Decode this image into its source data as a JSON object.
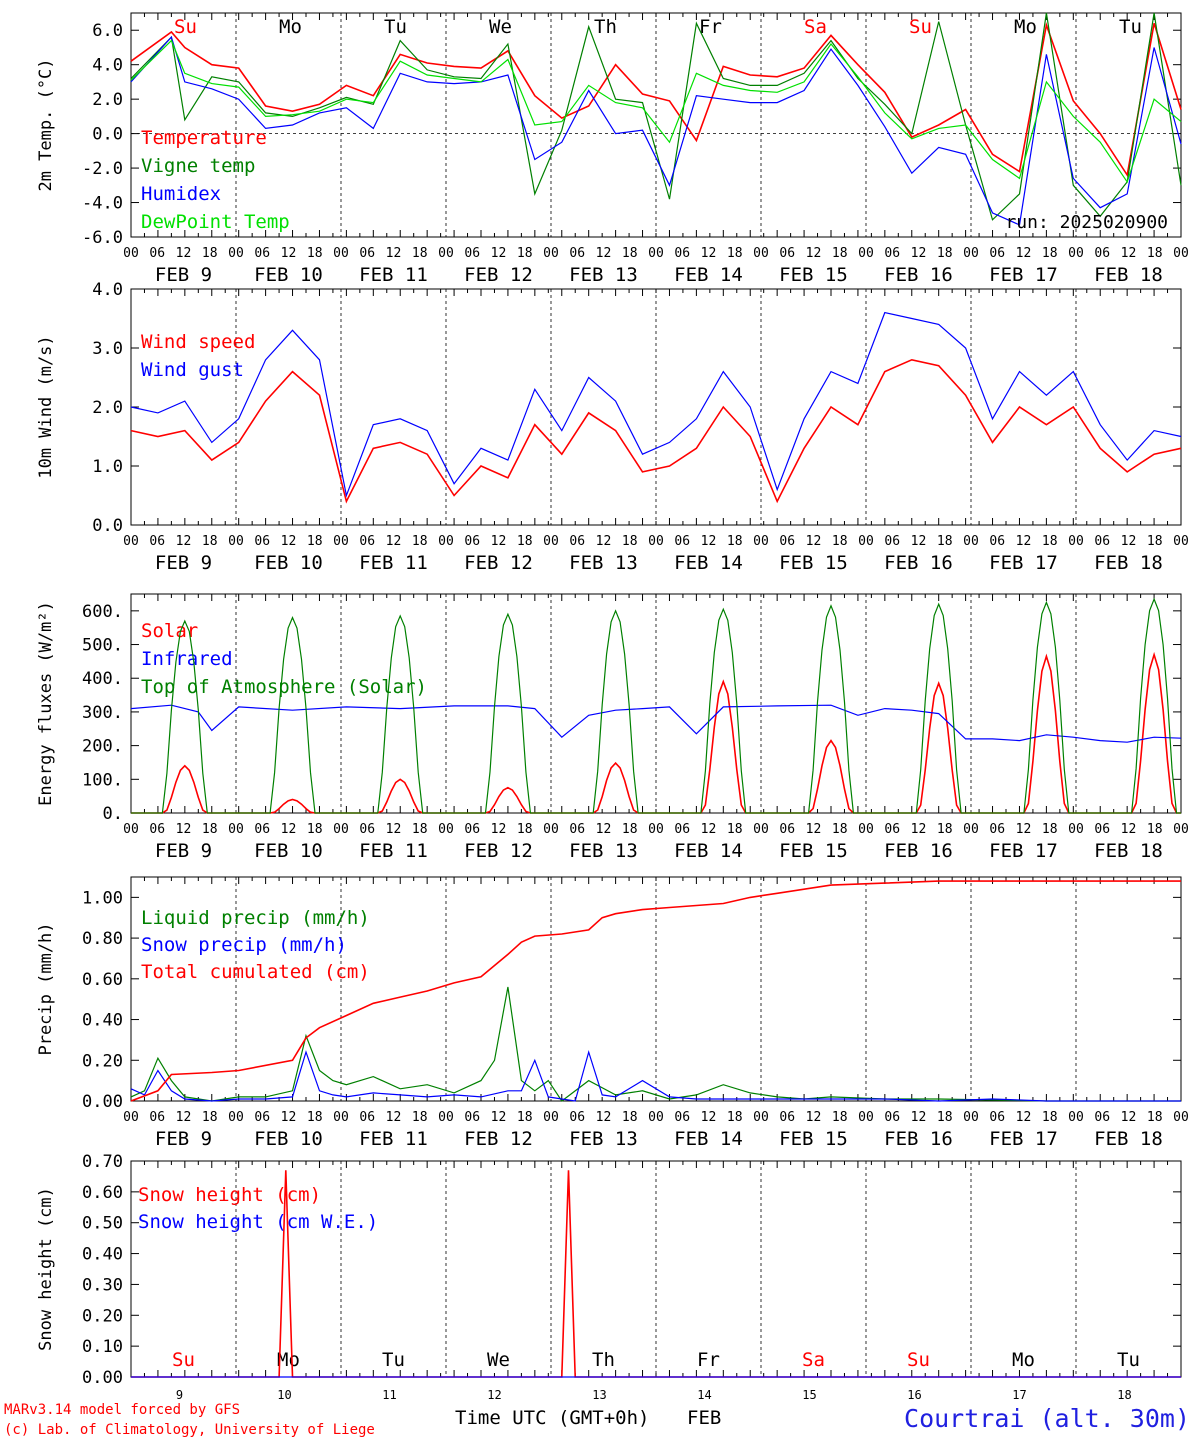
{
  "days": [
    {
      "abbr": "Su",
      "num": "9",
      "label": "FEB  9",
      "weekend": true
    },
    {
      "abbr": "Mo",
      "num": "10",
      "label": "FEB 10",
      "weekend": false
    },
    {
      "abbr": "Tu",
      "num": "11",
      "label": "FEB 11",
      "weekend": false
    },
    {
      "abbr": "We",
      "num": "12",
      "label": "FEB 12",
      "weekend": false
    },
    {
      "abbr": "Th",
      "num": "13",
      "label": "FEB 13",
      "weekend": false
    },
    {
      "abbr": "Fr",
      "num": "14",
      "label": "FEB 14",
      "weekend": false
    },
    {
      "abbr": "Sa",
      "num": "15",
      "label": "FEB 15",
      "weekend": true
    },
    {
      "abbr": "Su",
      "num": "16",
      "label": "FEB 16",
      "weekend": true
    },
    {
      "abbr": "Mo",
      "num": "17",
      "label": "FEB 17",
      "weekend": false
    },
    {
      "abbr": "Tu",
      "num": "18",
      "label": "FEB 18",
      "weekend": false
    }
  ],
  "hour_ticks": [
    "00",
    "06",
    "12",
    "18"
  ],
  "footer": {
    "model": "MARv3.14 model forced by GFS",
    "copyright": "(c) Lab. of Climatology, University of Liege",
    "xlabel": "Time UTC (GMT+0h)",
    "month": "FEB",
    "location": "Courtrai (alt. 30m)"
  },
  "colors": {
    "red": "#ff0000",
    "darkgreen": "#008000",
    "blue": "#0000ff",
    "lightgreen": "#00e000",
    "axis": "#000000",
    "weekend": "#ff0000"
  },
  "chart_data": [
    {
      "type": "line",
      "ylabel": "2m Temp. (°C)",
      "ylim": [
        -6,
        7
      ],
      "yticks": [
        "6.0",
        "4.0",
        "2.0",
        "0.0",
        "-2.0",
        "-4.0",
        "-6.0"
      ],
      "annotation": "run: 2025020900",
      "zero_line": true,
      "x_hours": [
        0,
        9,
        12,
        18,
        24,
        30,
        36,
        42,
        48,
        54,
        60,
        66,
        72,
        78,
        84,
        90,
        96,
        102,
        108,
        114,
        120,
        126,
        132,
        138,
        144,
        150,
        156,
        162,
        168,
        174,
        180,
        186,
        192,
        198,
        204,
        210,
        216,
        222,
        228,
        234
      ],
      "series": [
        {
          "name": "Temperature",
          "color": "red",
          "values": [
            4.2,
            5.9,
            5.0,
            4.0,
            3.8,
            1.6,
            1.3,
            1.7,
            2.8,
            2.2,
            4.6,
            4.1,
            3.9,
            3.8,
            4.8,
            2.2,
            0.9,
            1.6,
            4.0,
            2.3,
            1.9,
            -0.4,
            3.9,
            3.4,
            3.3,
            3.8,
            5.7,
            4.0,
            2.4,
            -0.2,
            0.5,
            1.4,
            -1.2,
            -2.2,
            6.3,
            1.9,
            0.0,
            -2.4,
            6.4,
            1.4
          ]
        },
        {
          "name": "Vigne temp",
          "color": "darkgreen",
          "values": [
            3.2,
            5.6,
            0.8,
            3.3,
            3.0,
            1.2,
            1.0,
            1.5,
            2.1,
            1.7,
            5.4,
            3.7,
            3.3,
            3.2,
            5.2,
            -3.5,
            0.2,
            6.2,
            2.0,
            1.8,
            -3.8,
            6.4,
            3.2,
            2.8,
            2.8,
            3.5,
            5.4,
            3.2,
            1.7,
            0.0,
            6.5,
            0.5,
            -5.0,
            -3.5,
            7.0,
            -3.0,
            -4.8,
            -2.8,
            7.0,
            -3.0
          ]
        },
        {
          "name": "Humidex",
          "color": "blue",
          "values": [
            3.0,
            5.6,
            3.0,
            2.6,
            2.0,
            0.3,
            0.5,
            1.2,
            1.5,
            0.3,
            3.5,
            3.0,
            2.9,
            3.0,
            3.4,
            -1.5,
            -0.5,
            2.5,
            0.0,
            0.2,
            -3.0,
            2.2,
            2.0,
            1.8,
            1.8,
            2.5,
            4.9,
            2.8,
            0.4,
            -2.3,
            -0.8,
            -1.2,
            -4.6,
            -5.3,
            4.6,
            -2.6,
            -4.3,
            -3.5,
            5.0,
            -0.6
          ]
        },
        {
          "name": "DewPoint Temp",
          "color": "lightgreen",
          "values": [
            3.1,
            5.4,
            3.5,
            2.9,
            2.7,
            1.0,
            1.1,
            1.3,
            2.0,
            1.8,
            4.2,
            3.4,
            3.2,
            3.0,
            4.3,
            0.5,
            0.7,
            2.8,
            1.8,
            1.5,
            -0.5,
            3.5,
            2.8,
            2.5,
            2.4,
            3.0,
            5.2,
            3.3,
            1.2,
            -0.3,
            0.3,
            0.5,
            -1.5,
            -2.6,
            3.0,
            1.0,
            -0.5,
            -2.8,
            2.0,
            0.7
          ]
        }
      ]
    },
    {
      "type": "line",
      "ylabel": "10m Wind (m/s)",
      "ylim": [
        0,
        4
      ],
      "yticks": [
        "4.0",
        "3.0",
        "2.0",
        "1.0",
        "0.0"
      ],
      "x_hours": [
        0,
        6,
        12,
        18,
        24,
        30,
        36,
        42,
        48,
        54,
        60,
        66,
        72,
        78,
        84,
        90,
        96,
        102,
        108,
        114,
        120,
        126,
        132,
        138,
        144,
        150,
        156,
        162,
        168,
        174,
        180,
        186,
        192,
        198,
        204,
        210,
        216,
        222,
        228,
        234
      ],
      "series": [
        {
          "name": "Wind speed",
          "color": "red",
          "values": [
            1.6,
            1.5,
            1.6,
            1.1,
            1.4,
            2.1,
            2.6,
            2.2,
            0.4,
            1.3,
            1.4,
            1.2,
            0.5,
            1.0,
            0.8,
            1.7,
            1.2,
            1.9,
            1.6,
            0.9,
            1.0,
            1.3,
            2.0,
            1.5,
            0.4,
            1.3,
            2.0,
            1.7,
            2.6,
            2.8,
            2.7,
            2.2,
            1.4,
            2.0,
            1.7,
            2.0,
            1.3,
            0.9,
            1.2,
            1.3
          ]
        },
        {
          "name": "Wind gust",
          "color": "blue",
          "values": [
            2.0,
            1.9,
            2.1,
            1.4,
            1.8,
            2.8,
            3.3,
            2.8,
            0.5,
            1.7,
            1.8,
            1.6,
            0.7,
            1.3,
            1.1,
            2.3,
            1.6,
            2.5,
            2.1,
            1.2,
            1.4,
            1.8,
            2.6,
            2.0,
            0.6,
            1.8,
            2.6,
            2.4,
            3.6,
            3.5,
            3.4,
            3.0,
            1.8,
            2.6,
            2.2,
            2.6,
            1.7,
            1.1,
            1.6,
            1.5
          ]
        }
      ]
    },
    {
      "type": "line",
      "ylabel": "Energy fluxes (W/m²)",
      "ylim": [
        0,
        650
      ],
      "yticks": [
        "600.",
        "500.",
        "400.",
        "300.",
        "200.",
        "100.",
        "0."
      ],
      "series": [
        {
          "name": "Solar",
          "color": "red",
          "peaks": [
            140,
            40,
            100,
            75,
            148,
            390,
            215,
            385,
            465,
            470
          ]
        },
        {
          "name": "Infrared",
          "color": "blue",
          "x_hours": [
            0,
            9,
            15,
            18,
            24,
            36,
            48,
            60,
            72,
            84,
            90,
            96,
            102,
            108,
            114,
            120,
            126,
            132,
            144,
            156,
            162,
            168,
            174,
            180,
            186,
            192,
            198,
            204,
            210,
            216,
            222,
            228,
            234
          ],
          "values": [
            310,
            320,
            300,
            245,
            315,
            305,
            315,
            310,
            318,
            318,
            310,
            225,
            290,
            305,
            310,
            315,
            235,
            315,
            318,
            320,
            290,
            310,
            305,
            295,
            220,
            220,
            215,
            232,
            225,
            215,
            210,
            225,
            222
          ]
        },
        {
          "name": "Top of Atmosphere (Solar)",
          "color": "darkgreen",
          "peaks": [
            570,
            580,
            585,
            590,
            600,
            605,
            615,
            620,
            625,
            635
          ]
        }
      ]
    },
    {
      "type": "line",
      "ylabel": "Precip (mm/h)",
      "ylim": [
        0,
        1.1
      ],
      "yticks": [
        "1.00",
        "0.80",
        "0.60",
        "0.40",
        "0.20",
        "0.00"
      ],
      "series": [
        {
          "name": "Liquid precip (mm/h)",
          "color": "darkgreen",
          "x_hours": [
            0,
            3,
            6,
            9,
            12,
            18,
            24,
            30,
            36,
            39,
            42,
            45,
            48,
            54,
            60,
            66,
            72,
            78,
            81,
            84,
            87,
            90,
            93,
            96,
            102,
            108,
            114,
            120,
            126,
            132,
            138,
            144,
            150,
            156,
            168,
            180,
            192,
            204,
            216,
            234
          ],
          "values": [
            0.02,
            0.05,
            0.21,
            0.1,
            0.02,
            0.0,
            0.02,
            0.02,
            0.05,
            0.32,
            0.15,
            0.1,
            0.08,
            0.12,
            0.06,
            0.08,
            0.04,
            0.1,
            0.2,
            0.56,
            0.1,
            0.05,
            0.1,
            0.0,
            0.1,
            0.03,
            0.05,
            0.01,
            0.03,
            0.08,
            0.04,
            0.02,
            0.01,
            0.02,
            0.01,
            0.01,
            0.005,
            0.0,
            0.0,
            0.0
          ]
        },
        {
          "name": "Snow precip (mm/h)",
          "color": "blue",
          "x_hours": [
            0,
            3,
            6,
            9,
            12,
            18,
            24,
            30,
            36,
            39,
            42,
            45,
            48,
            54,
            60,
            66,
            72,
            78,
            84,
            87,
            90,
            93,
            96,
            99,
            102,
            105,
            108,
            114,
            120,
            126,
            132,
            144,
            156,
            168,
            180,
            192,
            204,
            216,
            234
          ],
          "values": [
            0.06,
            0.03,
            0.15,
            0.05,
            0.01,
            0.0,
            0.01,
            0.01,
            0.02,
            0.24,
            0.05,
            0.03,
            0.02,
            0.04,
            0.03,
            0.02,
            0.03,
            0.02,
            0.05,
            0.05,
            0.2,
            0.02,
            0.01,
            0.0,
            0.24,
            0.03,
            0.02,
            0.1,
            0.02,
            0.01,
            0.01,
            0.01,
            0.01,
            0.01,
            0.0,
            0.01,
            0.0,
            0.0,
            0.0
          ]
        },
        {
          "name": "Total cumulated (cm)",
          "color": "red",
          "x_hours": [
            0,
            6,
            9,
            18,
            24,
            36,
            39,
            42,
            48,
            54,
            60,
            66,
            72,
            78,
            84,
            87,
            90,
            96,
            102,
            105,
            108,
            114,
            120,
            126,
            132,
            138,
            144,
            150,
            156,
            168,
            180,
            192,
            204,
            216,
            234
          ],
          "values": [
            0.0,
            0.05,
            0.13,
            0.14,
            0.15,
            0.2,
            0.31,
            0.36,
            0.42,
            0.48,
            0.51,
            0.54,
            0.58,
            0.61,
            0.72,
            0.78,
            0.81,
            0.82,
            0.84,
            0.9,
            0.92,
            0.94,
            0.95,
            0.96,
            0.97,
            1.0,
            1.02,
            1.04,
            1.06,
            1.07,
            1.08,
            1.08,
            1.08,
            1.08,
            1.08
          ]
        }
      ]
    },
    {
      "type": "line",
      "ylabel": "Snow height (cm)",
      "ylim": [
        0,
        0.7
      ],
      "yticks": [
        "0.70",
        "0.60",
        "0.50",
        "0.40",
        "0.30",
        "0.20",
        "0.10",
        "0.00"
      ],
      "series": [
        {
          "name": "Snow height (cm)",
          "color": "red",
          "x_hours": [
            0,
            33,
            34.5,
            36,
            96,
            97.5,
            99,
            234
          ],
          "values": [
            0,
            0,
            0.67,
            0,
            0,
            0.67,
            0,
            0
          ]
        },
        {
          "name": "Snow height (cm W.E.)",
          "color": "blue",
          "x_hours": [
            0,
            234
          ],
          "values": [
            0,
            0
          ]
        }
      ]
    }
  ]
}
